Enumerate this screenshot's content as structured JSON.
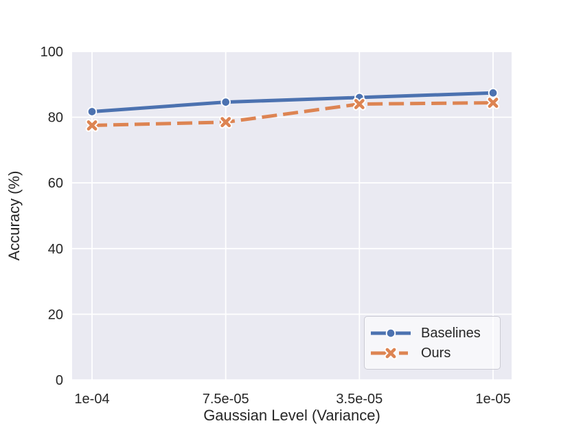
{
  "chart_data": {
    "type": "line",
    "title": "",
    "xlabel": "Gaussian Level (Variance)",
    "ylabel": "Accuracy (%)",
    "categories": [
      "1e-04",
      "7.5e-05",
      "3.5e-05",
      "1e-05"
    ],
    "series": [
      {
        "name": "Baselines",
        "values": [
          81.7,
          84.6,
          86.0,
          87.4
        ],
        "color": "#4C72B0",
        "line_style": "solid",
        "marker": "circle"
      },
      {
        "name": "Ours",
        "values": [
          77.5,
          78.5,
          84.0,
          84.4
        ],
        "color": "#DD8452",
        "line_style": "dashed",
        "marker": "x"
      }
    ],
    "yticks": [
      0,
      20,
      40,
      60,
      80,
      100
    ],
    "ylim": [
      0,
      100
    ],
    "grid": true,
    "legend_position": "lower right",
    "colors": {
      "plot_background": "#EAEAF2",
      "grid": "#FFFFFF",
      "text": "#262626",
      "marker_edge": "#FFFFFF",
      "legend_border": "#CACAD3"
    }
  }
}
